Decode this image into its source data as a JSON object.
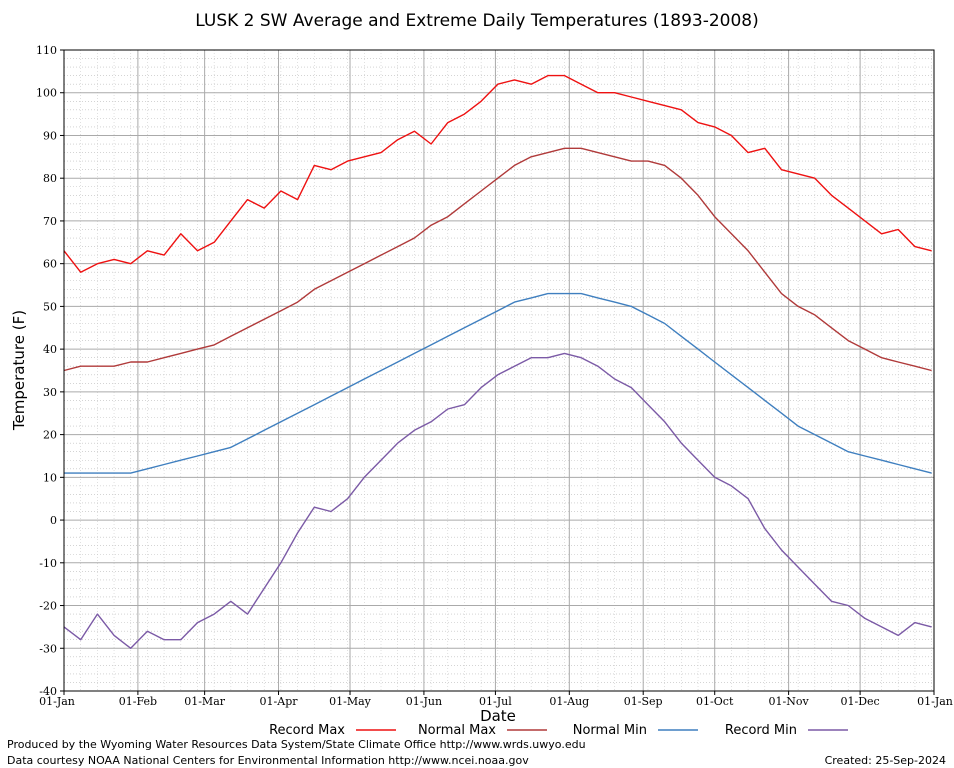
{
  "chart_data": {
    "type": "line",
    "title": "LUSK 2 SW Average and Extreme Daily Temperatures (1893-2008)",
    "xlabel": "Date",
    "ylabel": "Temperature (F)",
    "ylim": [
      -40,
      110
    ],
    "y_ticks": [
      "-40",
      "-30",
      "-20",
      "-10",
      "0",
      "10",
      "20",
      "30",
      "40",
      "50",
      "60",
      "70",
      "80",
      "90",
      "100",
      "110"
    ],
    "x_ticks": [
      "01-Jan",
      "01-Feb",
      "01-Mar",
      "01-Apr",
      "01-May",
      "01-Jun",
      "01-Jul",
      "01-Aug",
      "01-Sep",
      "01-Oct",
      "01-Nov",
      "01-Dec",
      "01-Jan"
    ],
    "x_tick_days": [
      1,
      32,
      60,
      91,
      121,
      152,
      182,
      213,
      244,
      274,
      305,
      335,
      366
    ],
    "xlim_days": [
      1,
      366
    ],
    "grid": true,
    "legend_position": "bottom",
    "series": [
      {
        "name": "Record Max",
        "color": "#ee1111",
        "x": [
          1,
          8,
          15,
          22,
          29,
          36,
          43,
          50,
          57,
          64,
          71,
          78,
          85,
          92,
          99,
          106,
          113,
          120,
          127,
          134,
          141,
          148,
          155,
          162,
          169,
          176,
          183,
          190,
          197,
          204,
          211,
          218,
          225,
          232,
          239,
          246,
          253,
          260,
          267,
          274,
          281,
          288,
          295,
          302,
          309,
          316,
          323,
          330,
          337,
          344,
          351,
          358,
          365
        ],
        "values": [
          63,
          58,
          60,
          61,
          60,
          63,
          62,
          67,
          63,
          65,
          70,
          75,
          73,
          77,
          75,
          83,
          82,
          84,
          85,
          86,
          89,
          91,
          88,
          93,
          95,
          98,
          102,
          103,
          102,
          104,
          104,
          102,
          100,
          100,
          99,
          98,
          97,
          96,
          93,
          92,
          90,
          86,
          87,
          82,
          81,
          80,
          76,
          73,
          70,
          67,
          68,
          64,
          63
        ]
      },
      {
        "name": "Normal Max",
        "color": "#b03a3a",
        "x": [
          1,
          8,
          15,
          22,
          29,
          36,
          43,
          50,
          57,
          64,
          71,
          78,
          85,
          92,
          99,
          106,
          113,
          120,
          127,
          134,
          141,
          148,
          155,
          162,
          169,
          176,
          183,
          190,
          197,
          204,
          211,
          218,
          225,
          232,
          239,
          246,
          253,
          260,
          267,
          274,
          281,
          288,
          295,
          302,
          309,
          316,
          323,
          330,
          337,
          344,
          351,
          358,
          365
        ],
        "values": [
          35,
          36,
          36,
          36,
          37,
          37,
          38,
          39,
          40,
          41,
          43,
          45,
          47,
          49,
          51,
          54,
          56,
          58,
          60,
          62,
          64,
          66,
          69,
          71,
          74,
          77,
          80,
          83,
          85,
          86,
          87,
          87,
          86,
          85,
          84,
          84,
          83,
          80,
          76,
          71,
          67,
          63,
          58,
          53,
          50,
          48,
          45,
          42,
          40,
          38,
          37,
          36,
          35
        ]
      },
      {
        "name": "Normal Min",
        "color": "#3f7fbf",
        "x": [
          1,
          8,
          15,
          22,
          29,
          36,
          43,
          50,
          57,
          64,
          71,
          78,
          85,
          92,
          99,
          106,
          113,
          120,
          127,
          134,
          141,
          148,
          155,
          162,
          169,
          176,
          183,
          190,
          197,
          204,
          211,
          218,
          225,
          232,
          239,
          246,
          253,
          260,
          267,
          274,
          281,
          288,
          295,
          302,
          309,
          316,
          323,
          330,
          337,
          344,
          351,
          358,
          365
        ],
        "values": [
          11,
          11,
          11,
          11,
          11,
          12,
          13,
          14,
          15,
          16,
          17,
          19,
          21,
          23,
          25,
          27,
          29,
          31,
          33,
          35,
          37,
          39,
          41,
          43,
          45,
          47,
          49,
          51,
          52,
          53,
          53,
          53,
          52,
          51,
          50,
          48,
          46,
          43,
          40,
          37,
          34,
          31,
          28,
          25,
          22,
          20,
          18,
          16,
          15,
          14,
          13,
          12,
          11
        ]
      },
      {
        "name": "Record Min",
        "color": "#7b5aa6",
        "x": [
          1,
          8,
          15,
          22,
          29,
          36,
          43,
          50,
          57,
          64,
          71,
          78,
          85,
          92,
          99,
          106,
          113,
          120,
          127,
          134,
          141,
          148,
          155,
          162,
          169,
          176,
          183,
          190,
          197,
          204,
          211,
          218,
          225,
          232,
          239,
          246,
          253,
          260,
          267,
          274,
          281,
          288,
          295,
          302,
          309,
          316,
          323,
          330,
          337,
          344,
          351,
          358,
          365
        ],
        "values": [
          -25,
          -28,
          -22,
          -27,
          -30,
          -26,
          -28,
          -28,
          -24,
          -22,
          -19,
          -22,
          -16,
          -10,
          -3,
          3,
          2,
          5,
          10,
          14,
          18,
          21,
          23,
          26,
          27,
          31,
          34,
          36,
          38,
          38,
          39,
          38,
          36,
          33,
          31,
          27,
          23,
          18,
          14,
          10,
          8,
          5,
          -2,
          -7,
          -11,
          -15,
          -19,
          -20,
          -23,
          -25,
          -27,
          -24,
          -25
        ]
      }
    ]
  },
  "legend": {
    "items": [
      {
        "label": "Record Max",
        "color": "#ee1111"
      },
      {
        "label": "Normal Max",
        "color": "#b03a3a"
      },
      {
        "label": "Normal Min",
        "color": "#3f7fbf"
      },
      {
        "label": "Record Min",
        "color": "#7b5aa6"
      }
    ]
  },
  "footer": {
    "line1": "Produced by the Wyoming Water Resources Data System/State Climate Office http://www.wrds.uwyo.edu",
    "line2": "Data courtesy NOAA National Centers for Environmental Information http://www.ncei.noaa.gov",
    "created": "Created:  25-Sep-2024"
  }
}
